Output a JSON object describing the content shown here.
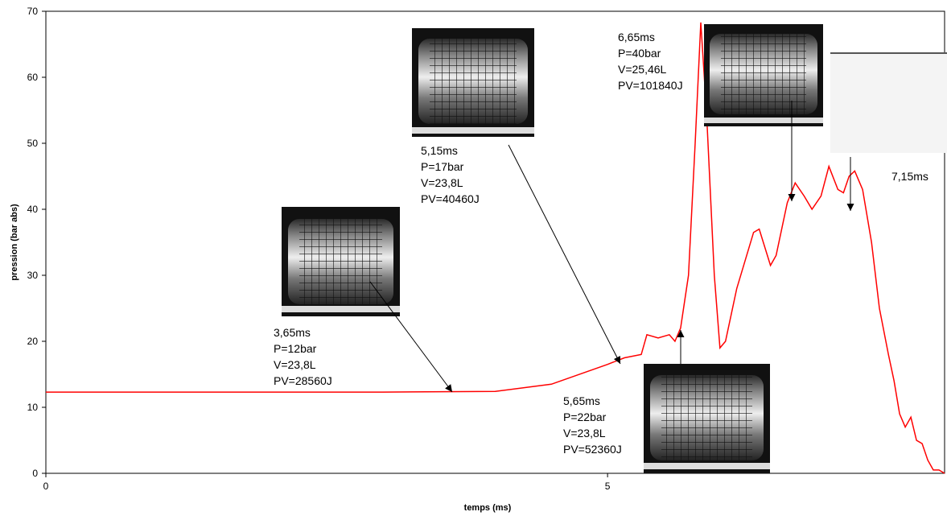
{
  "chart_data": {
    "type": "line",
    "x_label": "temps (ms)",
    "y_label": "pression (bar abs)",
    "xlim": [
      0,
      8
    ],
    "xticks": [
      0,
      5
    ],
    "ylim": [
      0,
      70
    ],
    "yticks": [
      0,
      10,
      20,
      30,
      40,
      50,
      60,
      70
    ],
    "x": [
      0,
      1,
      2,
      3,
      4,
      4.5,
      5,
      5.15,
      5.3,
      5.35,
      5.45,
      5.55,
      5.6,
      5.65,
      5.72,
      5.78,
      5.83,
      5.88,
      5.95,
      6.0,
      6.05,
      6.15,
      6.3,
      6.35,
      6.45,
      6.5,
      6.6,
      6.67,
      6.75,
      6.82,
      6.9,
      6.97,
      7.05,
      7.1,
      7.15,
      7.2,
      7.27,
      7.35,
      7.42,
      7.5,
      7.55,
      7.6,
      7.65,
      7.7,
      7.75,
      7.8,
      7.85,
      7.9,
      7.95,
      8.0
    ],
    "series": [
      {
        "color": "#ff0000",
        "values": [
          12.3,
          12.3,
          12.3,
          12.3,
          12.4,
          13.5,
          16.5,
          17.5,
          18,
          21,
          20.5,
          21,
          20,
          22,
          30,
          50,
          68.3,
          55,
          30,
          19,
          20,
          28,
          36.5,
          37,
          31.5,
          33,
          41,
          44,
          42,
          40,
          42,
          46.5,
          43,
          42.5,
          45,
          45.8,
          43,
          35,
          25,
          18,
          14,
          9,
          7,
          8.5,
          5,
          4.5,
          2,
          0.5,
          0.5,
          0
        ]
      }
    ],
    "annotations": [
      {
        "lines": [
          "3,65ms",
          "P=12bar",
          "V=23,8L",
          "PV=28560J"
        ]
      },
      {
        "lines": [
          "5,15ms",
          "P=17bar",
          "V=23,8L",
          "PV=40460J"
        ]
      },
      {
        "lines": [
          "5,65ms",
          "P=22bar",
          "V=23,8L",
          "PV=52360J"
        ]
      },
      {
        "lines": [
          "6,65ms",
          "P=40bar",
          "V=25,46L",
          "PV=101840J"
        ]
      },
      {
        "lines": [
          "7,15ms"
        ]
      }
    ]
  }
}
